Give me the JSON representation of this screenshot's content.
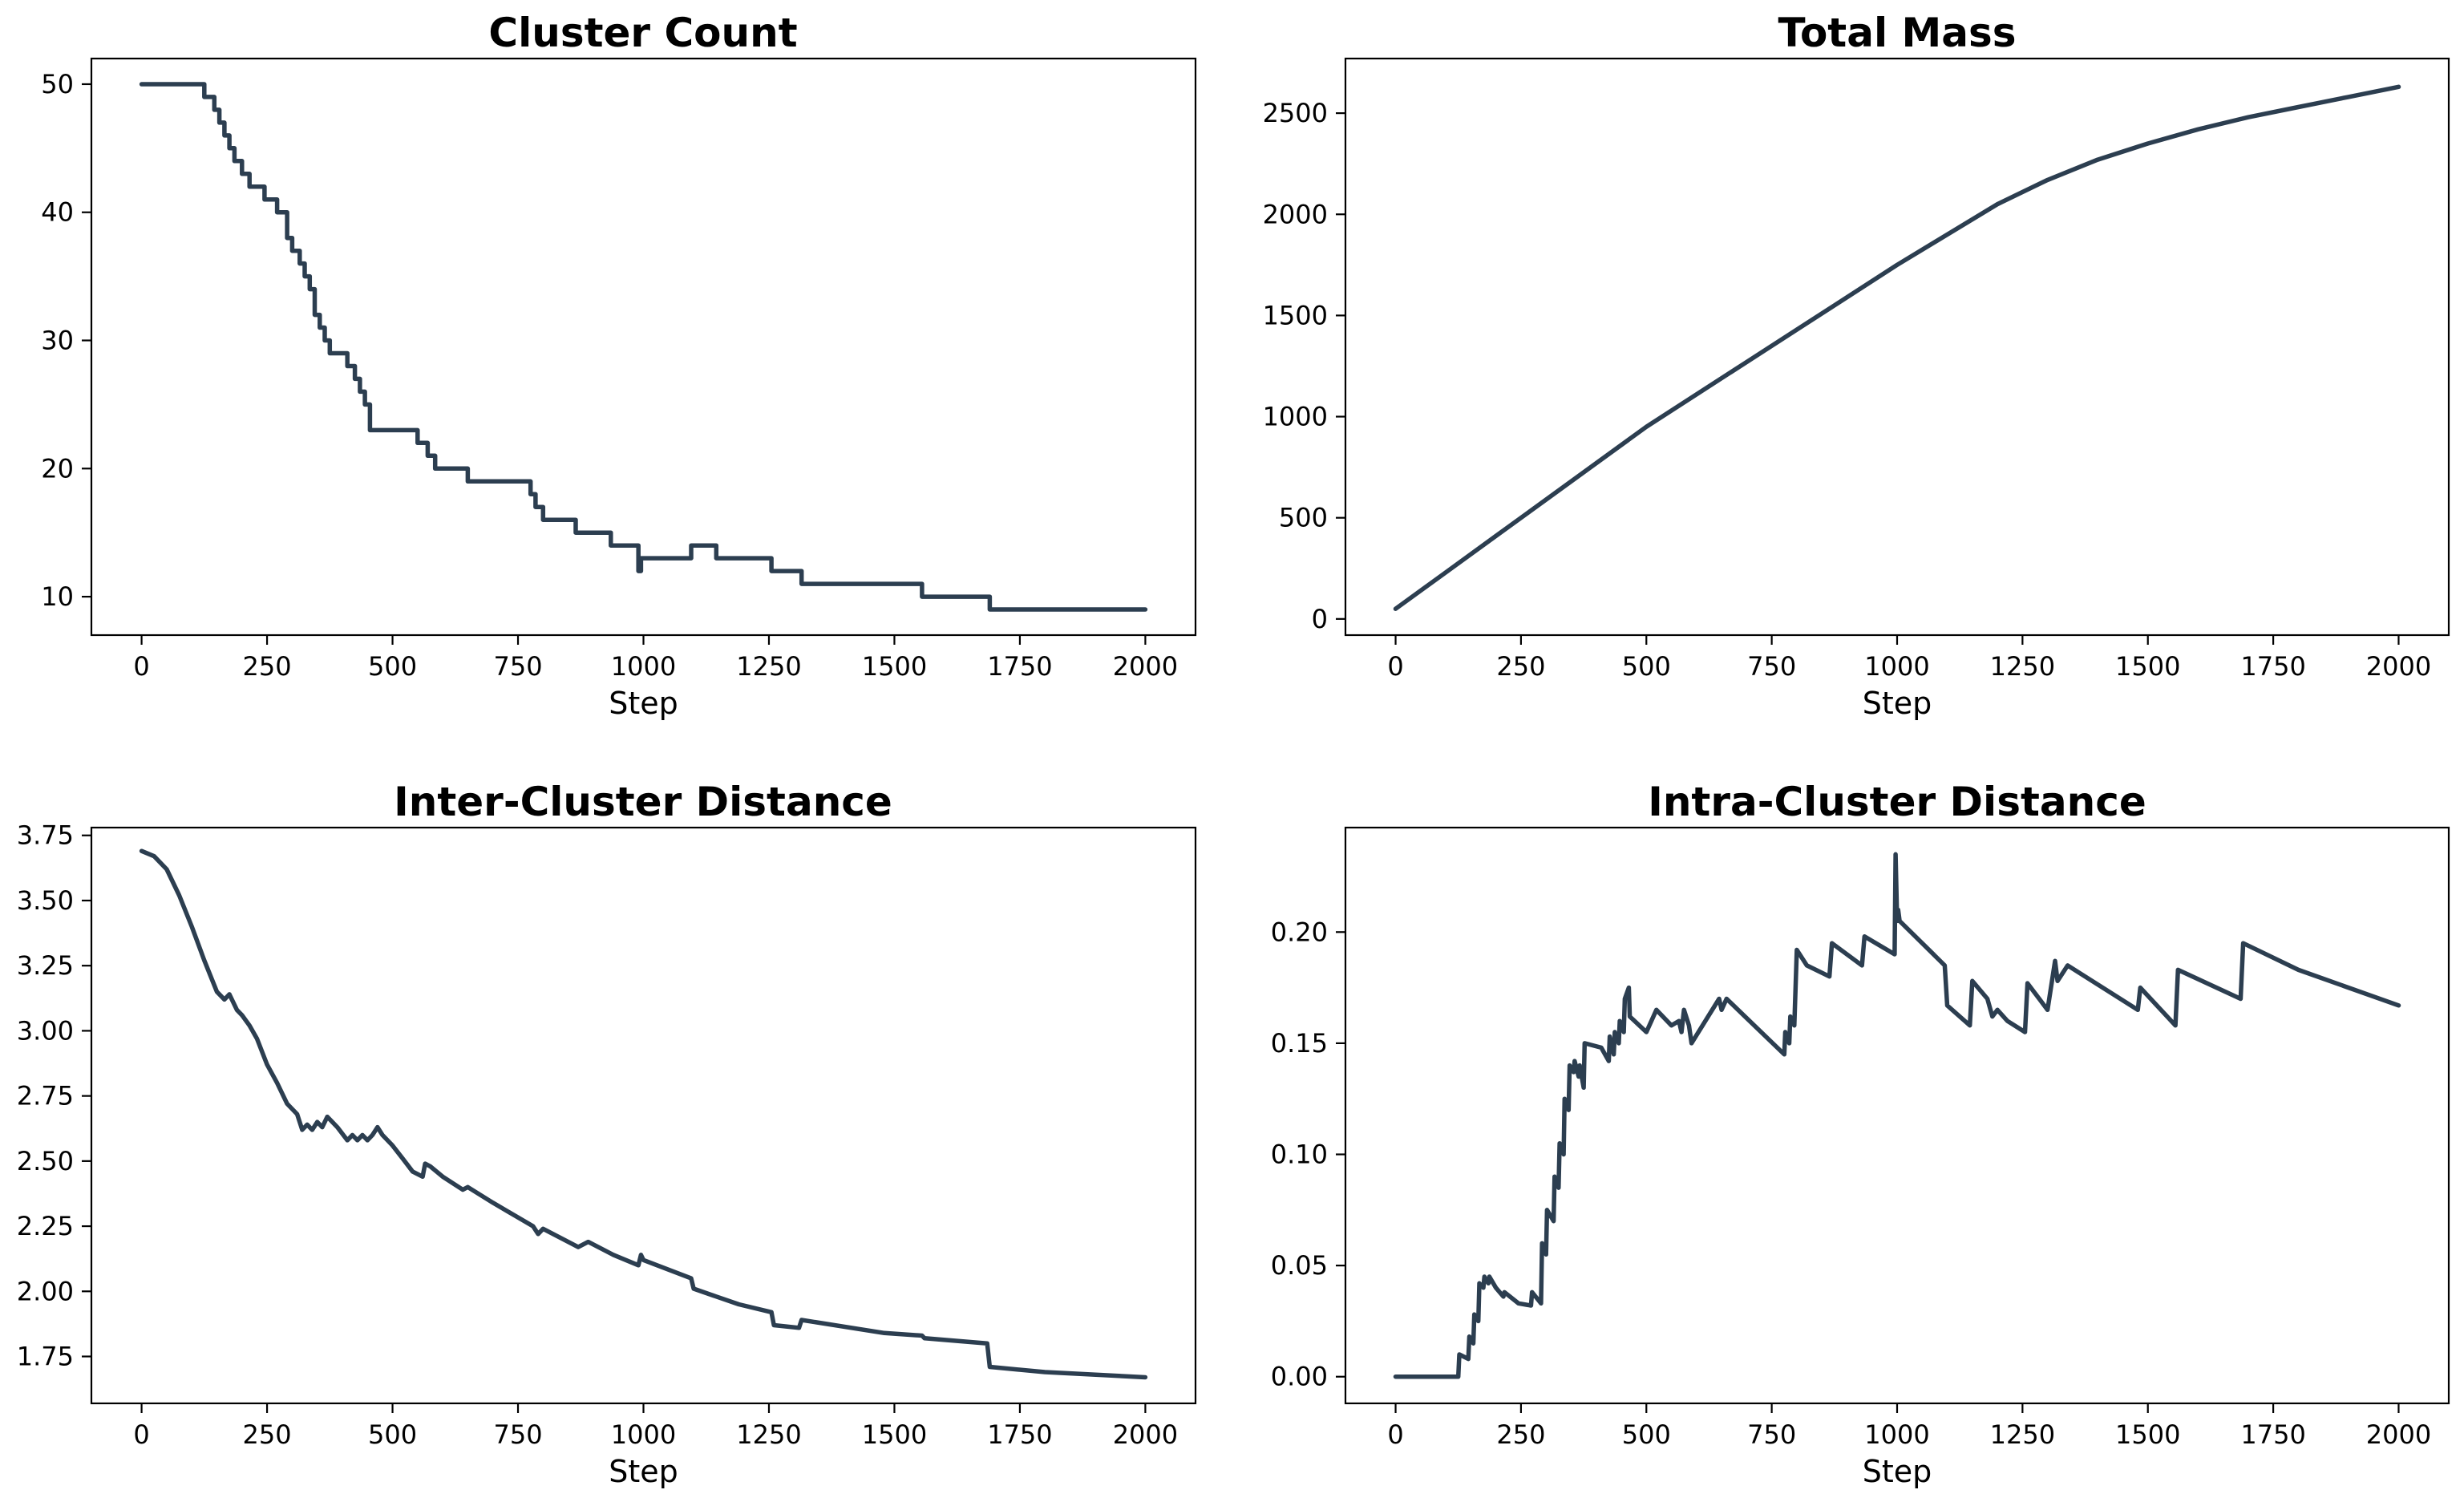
{
  "figure": {
    "line_color": "#2c3e50",
    "background": "#ffffff"
  },
  "chart_data": [
    {
      "type": "line",
      "title": "Cluster Count",
      "xlabel": "Step",
      "ylabel": "",
      "xlim": [
        -100,
        2100
      ],
      "ylim": [
        7,
        52
      ],
      "xticks": [
        0,
        250,
        500,
        750,
        1000,
        1250,
        1500,
        1750,
        2000
      ],
      "yticks": [
        10,
        20,
        30,
        40,
        50
      ],
      "step": true,
      "grid": false,
      "x": [
        0,
        125,
        145,
        155,
        165,
        175,
        185,
        200,
        215,
        245,
        270,
        290,
        300,
        315,
        325,
        335,
        345,
        355,
        365,
        375,
        400,
        410,
        425,
        435,
        445,
        455,
        465,
        480,
        495,
        510,
        525,
        550,
        570,
        585,
        600,
        620,
        650,
        700,
        775,
        785,
        800,
        820,
        865,
        920,
        935,
        990,
        995,
        1010,
        1095,
        1110,
        1145,
        1190,
        1255,
        1315,
        1480,
        1555,
        1690,
        2000
      ],
      "y": [
        50,
        49,
        48,
        47,
        46,
        45,
        44,
        43,
        42,
        41,
        40,
        38,
        37,
        36,
        35,
        34,
        32,
        31,
        30,
        29,
        29,
        28,
        27,
        26,
        25,
        23,
        23,
        23,
        23,
        23,
        23,
        22,
        21,
        20,
        20,
        20,
        19,
        19,
        18,
        17,
        16,
        16,
        15,
        15,
        14,
        12,
        13,
        13,
        14,
        14,
        13,
        13,
        12,
        11,
        11,
        10,
        9,
        9
      ]
    },
    {
      "type": "line",
      "title": "Total Mass",
      "xlabel": "Step",
      "ylabel": "",
      "xlim": [
        -100,
        2100
      ],
      "ylim": [
        -80,
        2770
      ],
      "xticks": [
        0,
        250,
        500,
        750,
        1000,
        1250,
        1500,
        1750,
        2000
      ],
      "yticks": [
        0,
        500,
        1000,
        1500,
        2000,
        2500
      ],
      "step": false,
      "grid": false,
      "x": [
        0,
        100,
        200,
        300,
        400,
        500,
        600,
        700,
        800,
        900,
        1000,
        1100,
        1200,
        1300,
        1400,
        1500,
        1600,
        1700,
        1800,
        1900,
        2000
      ],
      "y": [
        50,
        230,
        410,
        590,
        770,
        950,
        1110,
        1270,
        1430,
        1590,
        1750,
        1900,
        2050,
        2170,
        2270,
        2350,
        2420,
        2480,
        2530,
        2580,
        2630
      ]
    },
    {
      "type": "line",
      "title": "Inter-Cluster Distance",
      "xlabel": "Step",
      "ylabel": "",
      "xlim": [
        -100,
        2100
      ],
      "ylim": [
        1.57,
        3.78
      ],
      "xticks": [
        0,
        250,
        500,
        750,
        1000,
        1250,
        1500,
        1750,
        2000
      ],
      "yticks": [
        1.75,
        2.0,
        2.25,
        2.5,
        2.75,
        3.0,
        3.25,
        3.5,
        3.75
      ],
      "step": false,
      "grid": false,
      "x": [
        0,
        25,
        50,
        75,
        100,
        125,
        150,
        165,
        175,
        190,
        200,
        215,
        230,
        250,
        270,
        290,
        310,
        320,
        330,
        340,
        350,
        360,
        370,
        390,
        410,
        420,
        430,
        440,
        450,
        460,
        470,
        480,
        500,
        520,
        540,
        560,
        565,
        575,
        600,
        640,
        650,
        700,
        780,
        790,
        800,
        870,
        890,
        940,
        990,
        995,
        1000,
        1095,
        1100,
        1145,
        1190,
        1255,
        1260,
        1310,
        1315,
        1480,
        1555,
        1560,
        1685,
        1690,
        1800,
        2000
      ],
      "y": [
        3.69,
        3.67,
        3.62,
        3.52,
        3.4,
        3.27,
        3.15,
        3.12,
        3.14,
        3.08,
        3.06,
        3.02,
        2.97,
        2.87,
        2.8,
        2.72,
        2.68,
        2.62,
        2.64,
        2.62,
        2.65,
        2.63,
        2.67,
        2.63,
        2.58,
        2.6,
        2.58,
        2.6,
        2.58,
        2.6,
        2.63,
        2.6,
        2.56,
        2.51,
        2.46,
        2.44,
        2.49,
        2.48,
        2.44,
        2.39,
        2.4,
        2.34,
        2.25,
        2.22,
        2.24,
        2.17,
        2.19,
        2.14,
        2.1,
        2.14,
        2.12,
        2.05,
        2.01,
        1.98,
        1.95,
        1.92,
        1.87,
        1.86,
        1.89,
        1.84,
        1.83,
        1.82,
        1.8,
        1.71,
        1.69,
        1.67
      ]
    },
    {
      "type": "line",
      "title": "Intra-Cluster Distance",
      "xlabel": "Step",
      "ylabel": "",
      "xlim": [
        -100,
        2100
      ],
      "ylim": [
        -0.012,
        0.247
      ],
      "xticks": [
        0,
        250,
        500,
        750,
        1000,
        1250,
        1500,
        1750,
        2000
      ],
      "yticks": [
        0.0,
        0.05,
        0.1,
        0.15,
        0.2
      ],
      "step": false,
      "grid": false,
      "x": [
        0,
        125,
        127,
        145,
        147,
        155,
        157,
        165,
        167,
        175,
        177,
        185,
        187,
        200,
        215,
        217,
        245,
        270,
        272,
        290,
        292,
        300,
        302,
        315,
        317,
        325,
        327,
        335,
        337,
        345,
        347,
        355,
        357,
        365,
        367,
        375,
        377,
        410,
        425,
        427,
        435,
        437,
        445,
        447,
        455,
        457,
        465,
        467,
        500,
        520,
        550,
        565,
        570,
        575,
        585,
        590,
        645,
        650,
        660,
        775,
        777,
        785,
        787,
        795,
        800,
        820,
        865,
        870,
        930,
        935,
        995,
        997,
        1000,
        1002,
        1005,
        1095,
        1100,
        1145,
        1150,
        1180,
        1190,
        1200,
        1220,
        1255,
        1260,
        1300,
        1315,
        1320,
        1340,
        1480,
        1485,
        1555,
        1560,
        1685,
        1690,
        1800,
        2000
      ],
      "y": [
        0.0,
        0.0,
        0.01,
        0.008,
        0.018,
        0.015,
        0.028,
        0.025,
        0.042,
        0.04,
        0.045,
        0.042,
        0.045,
        0.04,
        0.036,
        0.038,
        0.033,
        0.032,
        0.038,
        0.033,
        0.06,
        0.055,
        0.075,
        0.07,
        0.09,
        0.085,
        0.105,
        0.1,
        0.125,
        0.12,
        0.14,
        0.137,
        0.142,
        0.135,
        0.14,
        0.13,
        0.15,
        0.148,
        0.142,
        0.153,
        0.145,
        0.155,
        0.15,
        0.16,
        0.155,
        0.17,
        0.175,
        0.162,
        0.155,
        0.165,
        0.158,
        0.16,
        0.155,
        0.165,
        0.158,
        0.15,
        0.17,
        0.165,
        0.17,
        0.145,
        0.155,
        0.15,
        0.162,
        0.158,
        0.192,
        0.185,
        0.18,
        0.195,
        0.185,
        0.198,
        0.19,
        0.235,
        0.205,
        0.21,
        0.205,
        0.185,
        0.167,
        0.158,
        0.178,
        0.17,
        0.162,
        0.165,
        0.16,
        0.155,
        0.177,
        0.165,
        0.187,
        0.178,
        0.185,
        0.165,
        0.175,
        0.158,
        0.183,
        0.17,
        0.195,
        0.183,
        0.167
      ]
    }
  ]
}
